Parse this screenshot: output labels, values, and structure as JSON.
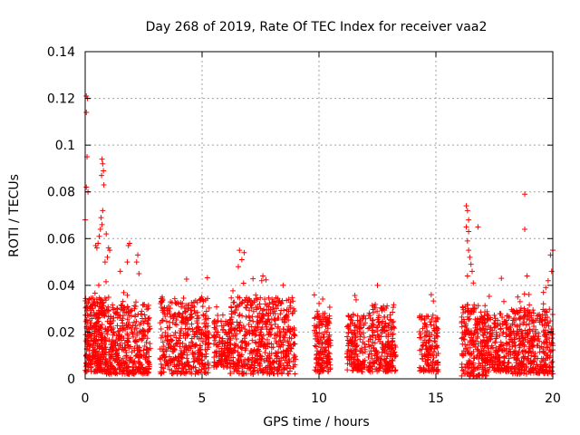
{
  "chart_data": {
    "type": "scatter",
    "title": "Day 268 of 2019, Rate Of TEC Index for receiver vaa2",
    "xlabel": "GPS time / hours",
    "ylabel": "ROTI / TECUs",
    "xlim": [
      0,
      20
    ],
    "ylim": [
      0,
      0.14
    ],
    "grid": true,
    "marker": "+",
    "series_color": "#ff0000",
    "x_ticks": [
      0,
      5,
      10,
      15,
      20
    ],
    "x_tick_labels": [
      "0",
      "5",
      "10",
      "15",
      "20"
    ],
    "y_ticks": [
      0,
      0.02,
      0.04,
      0.06,
      0.08,
      0.1,
      0.12,
      0.14
    ],
    "y_tick_labels": [
      "0",
      "0.02",
      "0.04",
      "0.06",
      "0.08",
      "0.1",
      "0.12",
      "0.14"
    ],
    "clusters": [
      {
        "x_range": [
          0.0,
          0.9
        ],
        "y_base": [
          0.003,
          0.035
        ],
        "count": 320
      },
      {
        "x_range": [
          0.9,
          2.8
        ],
        "y_base": [
          0.002,
          0.032
        ],
        "count": 420
      },
      {
        "x_range": [
          3.2,
          5.3
        ],
        "y_base": [
          0.002,
          0.035
        ],
        "count": 420
      },
      {
        "x_range": [
          5.5,
          6.2
        ],
        "y_base": [
          0.005,
          0.025
        ],
        "count": 140
      },
      {
        "x_range": [
          6.2,
          9.0
        ],
        "y_base": [
          0.002,
          0.035
        ],
        "count": 560
      },
      {
        "x_range": [
          9.8,
          10.5
        ],
        "y_base": [
          0.003,
          0.028
        ],
        "count": 160
      },
      {
        "x_range": [
          11.2,
          12.0
        ],
        "y_base": [
          0.003,
          0.028
        ],
        "count": 160
      },
      {
        "x_range": [
          12.1,
          13.3
        ],
        "y_base": [
          0.003,
          0.032
        ],
        "count": 240
      },
      {
        "x_range": [
          14.3,
          15.1
        ],
        "y_base": [
          0.003,
          0.027
        ],
        "count": 150
      },
      {
        "x_range": [
          16.1,
          17.2
        ],
        "y_base": [
          0.001,
          0.032
        ],
        "count": 260
      },
      {
        "x_range": [
          17.2,
          18.2
        ],
        "y_base": [
          0.003,
          0.028
        ],
        "count": 200
      },
      {
        "x_range": [
          18.2,
          20.0
        ],
        "y_base": [
          0.002,
          0.03
        ],
        "count": 380
      }
    ],
    "outliers": [
      [
        0.05,
        0.121
      ],
      [
        0.1,
        0.12
      ],
      [
        0.05,
        0.114
      ],
      [
        0.08,
        0.095
      ],
      [
        0.05,
        0.082
      ],
      [
        0.12,
        0.08
      ],
      [
        0.0,
        0.068
      ],
      [
        0.72,
        0.094
      ],
      [
        0.75,
        0.092
      ],
      [
        0.78,
        0.089
      ],
      [
        0.7,
        0.087
      ],
      [
        0.8,
        0.083
      ],
      [
        0.75,
        0.072
      ],
      [
        0.68,
        0.069
      ],
      [
        0.72,
        0.066
      ],
      [
        0.65,
        0.064
      ],
      [
        0.6,
        0.061
      ],
      [
        0.55,
        0.058
      ],
      [
        0.45,
        0.057
      ],
      [
        0.5,
        0.056
      ],
      [
        0.9,
        0.062
      ],
      [
        1.0,
        0.056
      ],
      [
        1.05,
        0.055
      ],
      [
        0.95,
        0.052
      ],
      [
        0.85,
        0.05
      ],
      [
        1.9,
        0.058
      ],
      [
        1.85,
        0.057
      ],
      [
        1.8,
        0.05
      ],
      [
        2.3,
        0.045
      ],
      [
        2.2,
        0.05
      ],
      [
        2.25,
        0.053
      ],
      [
        1.5,
        0.046
      ],
      [
        6.6,
        0.055
      ],
      [
        6.8,
        0.054
      ],
      [
        6.7,
        0.051
      ],
      [
        6.55,
        0.048
      ],
      [
        7.6,
        0.044
      ],
      [
        7.55,
        0.042
      ],
      [
        12.5,
        0.04
      ],
      [
        14.8,
        0.036
      ],
      [
        16.3,
        0.074
      ],
      [
        16.35,
        0.072
      ],
      [
        16.4,
        0.068
      ],
      [
        16.3,
        0.065
      ],
      [
        16.4,
        0.063
      ],
      [
        16.35,
        0.059
      ],
      [
        16.8,
        0.065
      ],
      [
        16.4,
        0.055
      ],
      [
        16.45,
        0.052
      ],
      [
        16.5,
        0.049
      ],
      [
        16.55,
        0.046
      ],
      [
        16.35,
        0.044
      ],
      [
        16.6,
        0.041
      ],
      [
        17.8,
        0.043
      ],
      [
        18.8,
        0.079
      ],
      [
        18.8,
        0.064
      ],
      [
        18.9,
        0.044
      ],
      [
        20.0,
        0.055
      ],
      [
        19.9,
        0.053
      ],
      [
        19.95,
        0.046
      ],
      [
        19.8,
        0.042
      ],
      [
        19.7,
        0.039
      ],
      [
        19.6,
        0.037
      ],
      [
        18.5,
        0.035
      ],
      [
        18.6,
        0.033
      ]
    ]
  }
}
